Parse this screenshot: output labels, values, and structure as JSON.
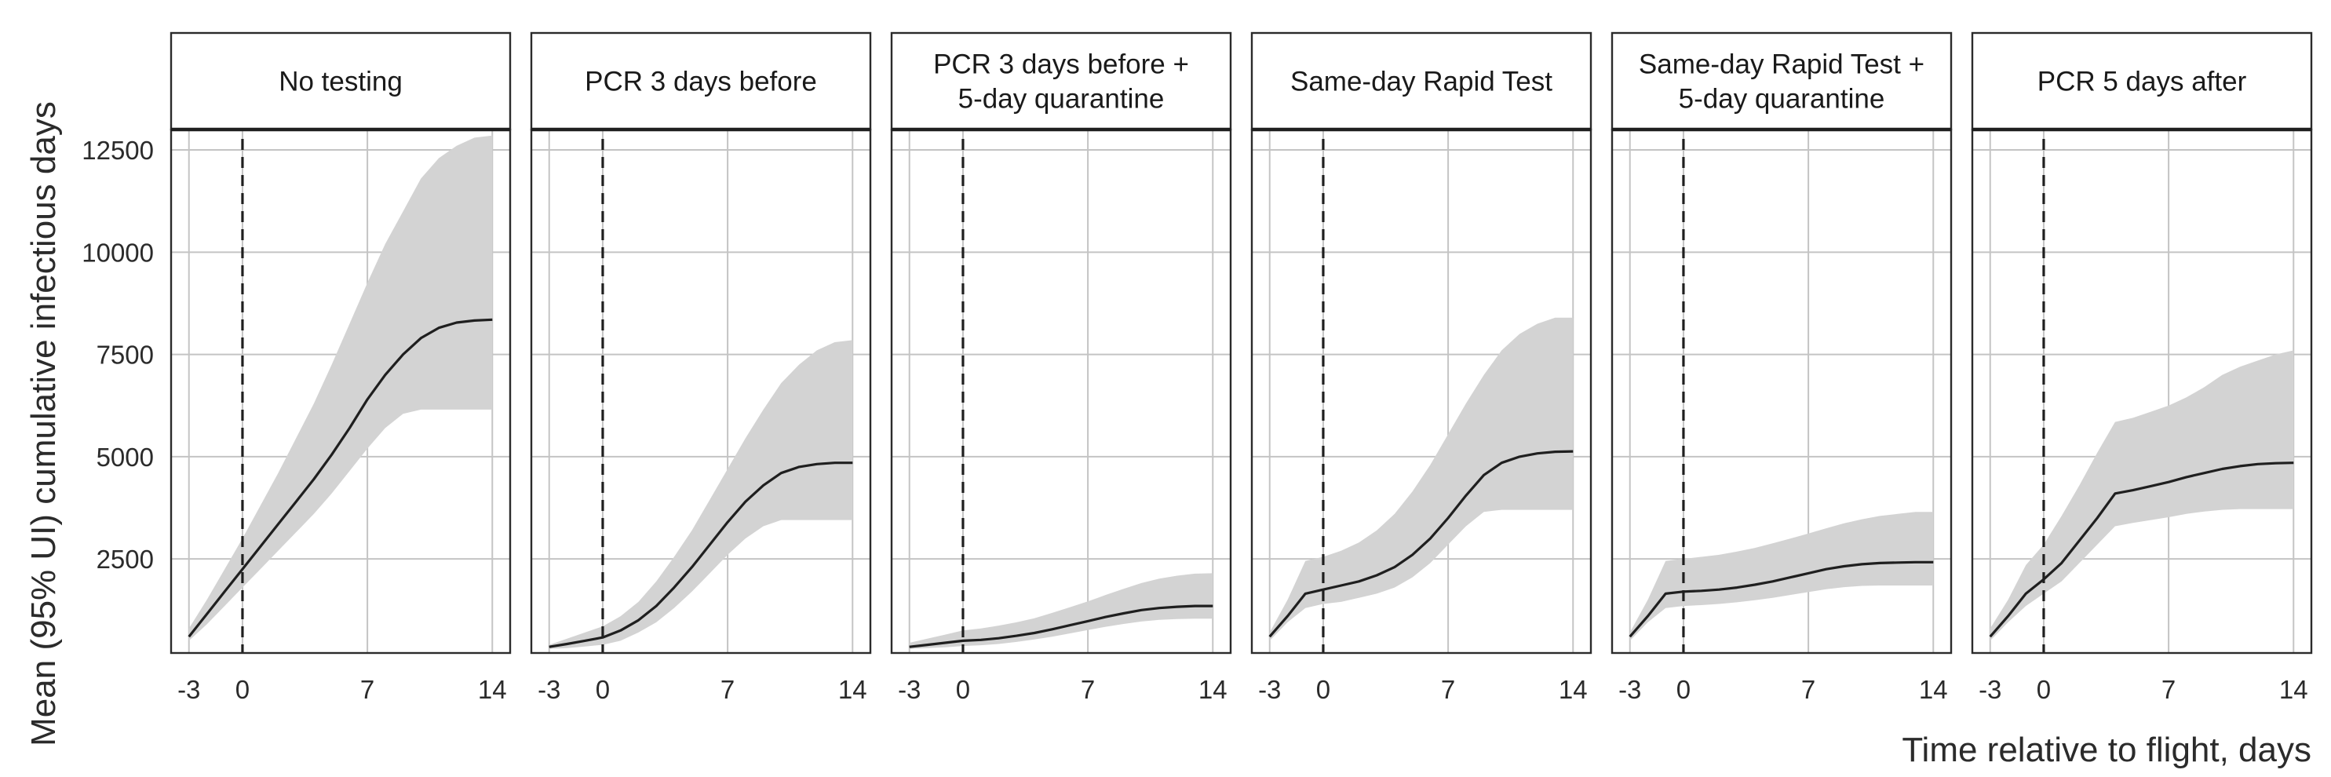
{
  "chart_data": {
    "type": "area",
    "xlabel": "Time relative to flight, days",
    "ylabel": "Mean (95% UI) cumulative infectious days",
    "xlim": [
      -4,
      15
    ],
    "ylim": [
      200,
      13000
    ],
    "x_ticks": [
      -3,
      0,
      7,
      14
    ],
    "y_ticks": [
      2500,
      5000,
      7500,
      10000,
      12500
    ],
    "grid": true,
    "reference_line_x": 0,
    "x": [
      -3,
      -2,
      -1,
      0,
      1,
      2,
      3,
      4,
      5,
      6,
      7,
      8,
      9,
      10,
      11,
      12,
      13,
      14
    ],
    "panels": [
      {
        "title": "No testing",
        "mean": [
          600,
          1150,
          1700,
          2250,
          2800,
          3350,
          3900,
          4450,
          5050,
          5700,
          6400,
          7000,
          7500,
          7900,
          8150,
          8280,
          8330,
          8350
        ],
        "lower": [
          500,
          900,
          1350,
          1800,
          2250,
          2700,
          3150,
          3600,
          4100,
          4650,
          5200,
          5700,
          6050,
          6150,
          6150,
          6150,
          6150,
          6150
        ],
        "upper": [
          800,
          1500,
          2250,
          3000,
          3800,
          4600,
          5450,
          6300,
          7250,
          8250,
          9250,
          10200,
          11000,
          11800,
          12300,
          12600,
          12800,
          12850
        ]
      },
      {
        "title": "PCR 3 days before",
        "mean": [
          350,
          420,
          500,
          580,
          750,
          1000,
          1350,
          1800,
          2300,
          2850,
          3400,
          3900,
          4300,
          4600,
          4750,
          4820,
          4850,
          4850
        ],
        "lower": [
          300,
          320,
          360,
          400,
          500,
          700,
          950,
          1300,
          1700,
          2150,
          2600,
          3000,
          3300,
          3450,
          3450,
          3450,
          3450,
          3450
        ],
        "upper": [
          400,
          550,
          700,
          850,
          1100,
          1450,
          1950,
          2550,
          3200,
          3950,
          4700,
          5450,
          6150,
          6800,
          7250,
          7600,
          7800,
          7850
        ]
      },
      {
        "title": "PCR 3 days before + 5-day quarantine",
        "mean": [
          350,
          400,
          450,
          500,
          520,
          560,
          620,
          690,
          780,
          880,
          980,
          1080,
          1170,
          1250,
          1300,
          1330,
          1350,
          1350
        ],
        "lower": [
          300,
          320,
          340,
          370,
          390,
          420,
          470,
          530,
          600,
          680,
          760,
          840,
          910,
          970,
          1010,
          1030,
          1040,
          1040
        ],
        "upper": [
          450,
          550,
          650,
          750,
          800,
          870,
          950,
          1050,
          1180,
          1320,
          1460,
          1620,
          1770,
          1910,
          2020,
          2090,
          2140,
          2150
        ]
      },
      {
        "title": "Same-day Rapid Test",
        "mean": [
          600,
          1100,
          1650,
          1750,
          1850,
          1950,
          2100,
          2300,
          2600,
          3000,
          3500,
          4050,
          4550,
          4850,
          5000,
          5080,
          5120,
          5130
        ],
        "lower": [
          500,
          950,
          1300,
          1400,
          1450,
          1550,
          1650,
          1800,
          2050,
          2400,
          2850,
          3300,
          3650,
          3700,
          3700,
          3700,
          3700,
          3700
        ],
        "upper": [
          700,
          1500,
          2450,
          2550,
          2700,
          2900,
          3200,
          3600,
          4150,
          4800,
          5550,
          6300,
          7000,
          7600,
          8000,
          8250,
          8400,
          8400
        ]
      },
      {
        "title": "Same-day Rapid Test + 5-day quarantine",
        "mean": [
          600,
          1100,
          1650,
          1700,
          1720,
          1750,
          1800,
          1870,
          1950,
          2050,
          2150,
          2250,
          2320,
          2370,
          2400,
          2410,
          2420,
          2420
        ],
        "lower": [
          500,
          950,
          1300,
          1350,
          1370,
          1400,
          1440,
          1490,
          1550,
          1620,
          1690,
          1760,
          1810,
          1840,
          1850,
          1850,
          1850,
          1850
        ],
        "upper": [
          700,
          1500,
          2450,
          2500,
          2550,
          2600,
          2680,
          2770,
          2880,
          3000,
          3120,
          3250,
          3370,
          3470,
          3550,
          3600,
          3650,
          3650
        ]
      },
      {
        "title": "PCR 5 days after",
        "mean": [
          600,
          1100,
          1650,
          2000,
          2400,
          2950,
          3500,
          4100,
          4180,
          4280,
          4380,
          4500,
          4600,
          4700,
          4770,
          4820,
          4840,
          4850
        ],
        "lower": [
          500,
          950,
          1350,
          1650,
          1950,
          2400,
          2850,
          3300,
          3380,
          3450,
          3520,
          3600,
          3660,
          3700,
          3720,
          3720,
          3720,
          3720
        ],
        "upper": [
          800,
          1500,
          2350,
          2850,
          3550,
          4300,
          5100,
          5850,
          5950,
          6100,
          6250,
          6450,
          6700,
          7000,
          7200,
          7350,
          7500,
          7600
        ]
      }
    ]
  }
}
